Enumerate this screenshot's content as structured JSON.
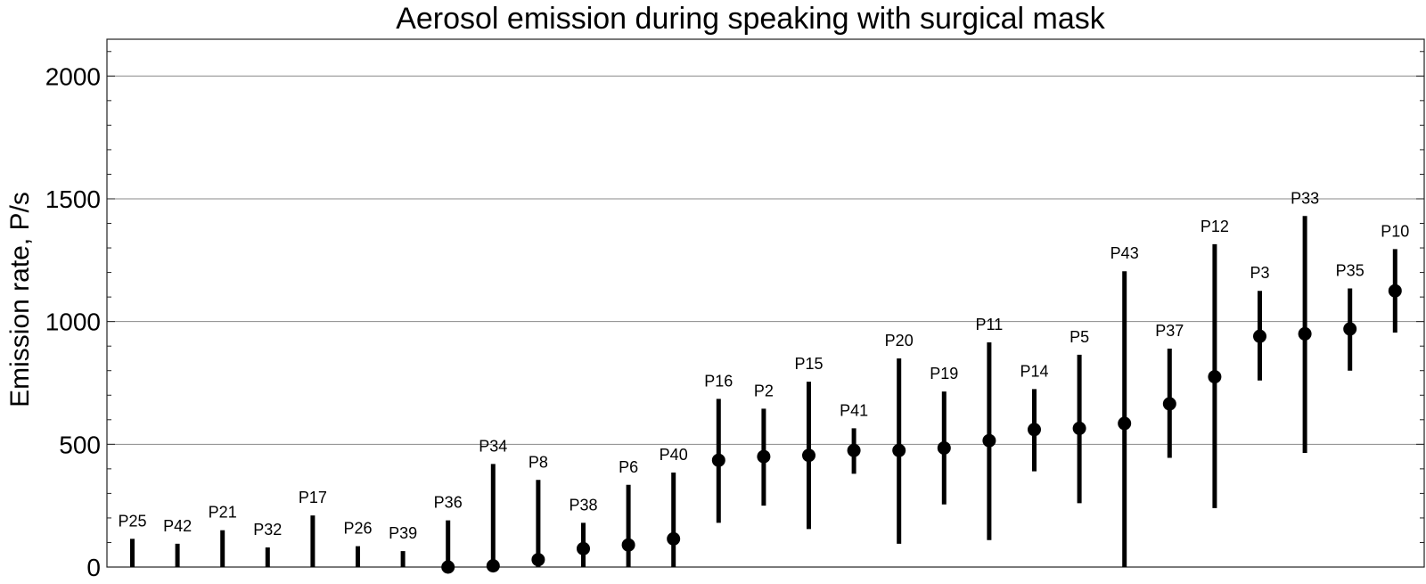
{
  "chart_data": {
    "type": "scatter",
    "title": "Aerosol emission during speaking with surgical mask",
    "xlabel": "",
    "ylabel": "Emission rate,  P/s",
    "ylim": [
      0,
      2150
    ],
    "yticks": [
      0,
      500,
      1000,
      1500,
      2000
    ],
    "grid": true,
    "legend": "none",
    "mark_color": "#000000",
    "points": [
      {
        "label": "P25",
        "value": null,
        "low": 0,
        "high": 115
      },
      {
        "label": "P42",
        "value": null,
        "low": 0,
        "high": 95
      },
      {
        "label": "P21",
        "value": null,
        "low": 0,
        "high": 150
      },
      {
        "label": "P32",
        "value": null,
        "low": 0,
        "high": 80
      },
      {
        "label": "P17",
        "value": null,
        "low": 0,
        "high": 210
      },
      {
        "label": "P26",
        "value": null,
        "low": 0,
        "high": 85
      },
      {
        "label": "P39",
        "value": null,
        "low": 0,
        "high": 65
      },
      {
        "label": "P36",
        "value": 0,
        "low": 0,
        "high": 190
      },
      {
        "label": "P34",
        "value": 5,
        "low": 0,
        "high": 420
      },
      {
        "label": "P8",
        "value": 30,
        "low": 0,
        "high": 355
      },
      {
        "label": "P38",
        "value": 75,
        "low": 0,
        "high": 180
      },
      {
        "label": "P6",
        "value": 90,
        "low": 0,
        "high": 335
      },
      {
        "label": "P40",
        "value": 115,
        "low": 0,
        "high": 385
      },
      {
        "label": "P16",
        "value": 435,
        "low": 180,
        "high": 685
      },
      {
        "label": "P2",
        "value": 450,
        "low": 250,
        "high": 645
      },
      {
        "label": "P15",
        "value": 455,
        "low": 155,
        "high": 755
      },
      {
        "label": "P41",
        "value": 475,
        "low": 380,
        "high": 565
      },
      {
        "label": "P20",
        "value": 475,
        "low": 95,
        "high": 850
      },
      {
        "label": "P19",
        "value": 485,
        "low": 255,
        "high": 715
      },
      {
        "label": "P11",
        "value": 515,
        "low": 110,
        "high": 915
      },
      {
        "label": "P14",
        "value": 560,
        "low": 390,
        "high": 725
      },
      {
        "label": "P5",
        "value": 565,
        "low": 260,
        "high": 865
      },
      {
        "label": "P43",
        "value": 585,
        "low": 0,
        "high": 1205
      },
      {
        "label": "P37",
        "value": 665,
        "low": 445,
        "high": 890
      },
      {
        "label": "P12",
        "value": 775,
        "low": 240,
        "high": 1315
      },
      {
        "label": "P3",
        "value": 940,
        "low": 760,
        "high": 1125
      },
      {
        "label": "P33",
        "value": 950,
        "low": 465,
        "high": 1430
      },
      {
        "label": "P35",
        "value": 970,
        "low": 800,
        "high": 1135
      },
      {
        "label": "P10",
        "value": 1125,
        "low": 955,
        "high": 1295
      }
    ]
  }
}
